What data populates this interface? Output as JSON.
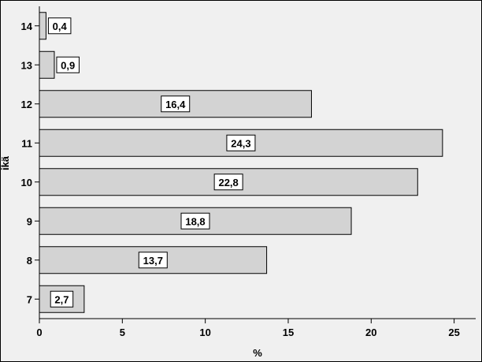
{
  "chart_data": {
    "type": "bar",
    "orientation": "horizontal",
    "categories": [
      "7",
      "8",
      "9",
      "10",
      "11",
      "12",
      "13",
      "14"
    ],
    "values": [
      2.7,
      13.7,
      18.8,
      22.8,
      24.3,
      16.4,
      0.9,
      0.4
    ],
    "data_labels": [
      "2,7",
      "13,7",
      "18,8",
      "22,8",
      "24,3",
      "16,4",
      "0,9",
      "0,4"
    ],
    "xlabel": "%",
    "ylabel": "ikä",
    "xlim": [
      0,
      26.3
    ],
    "x_ticks": [
      "0",
      "5",
      "10",
      "15",
      "20",
      "25"
    ],
    "grid": false,
    "colors": {
      "bar_fill": "#d3d3d3",
      "plot_background": "#f0f0f0"
    }
  }
}
